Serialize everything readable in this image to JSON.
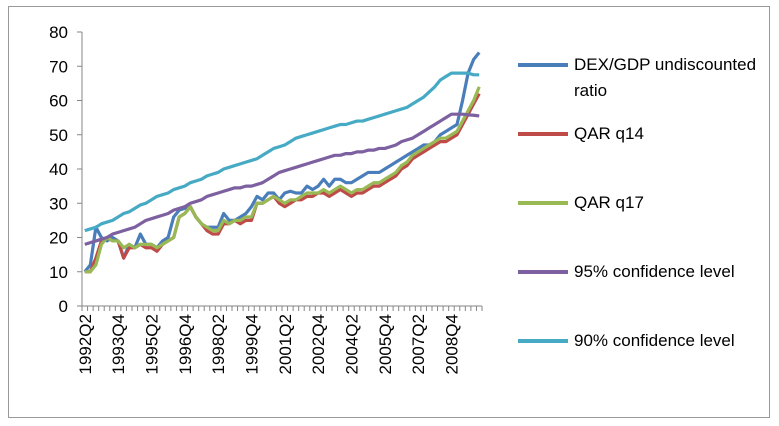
{
  "chart_data": {
    "type": "line",
    "categories": [
      "1992Q2",
      null,
      null,
      null,
      null,
      null,
      "1993Q4",
      null,
      null,
      null,
      null,
      null,
      "1995Q2",
      null,
      null,
      null,
      null,
      null,
      "1996Q4",
      null,
      null,
      null,
      null,
      null,
      "1998Q2",
      null,
      null,
      null,
      null,
      null,
      "1999Q4",
      null,
      null,
      null,
      null,
      null,
      "2001Q2",
      null,
      null,
      null,
      null,
      null,
      "2002Q4",
      null,
      null,
      null,
      null,
      null,
      "2004Q2",
      null,
      null,
      null,
      null,
      null,
      "2005Q4",
      null,
      null,
      null,
      null,
      null,
      "2007Q2",
      null,
      null,
      null,
      null,
      null,
      "2008Q4",
      null,
      null,
      null,
      null,
      null
    ],
    "ylim": [
      0,
      80
    ],
    "yticks": [
      0,
      10,
      20,
      30,
      40,
      50,
      60,
      70,
      80
    ],
    "series": [
      {
        "name": "DEX/GDP undiscounted ratio",
        "color": "#4a7ebb",
        "values": [
          10,
          12,
          23,
          20,
          19,
          20,
          19,
          14,
          18,
          17,
          21,
          18,
          18,
          17,
          19,
          20,
          26,
          28,
          28.5,
          29,
          26,
          24,
          23,
          23,
          23,
          27,
          25,
          25,
          26,
          27,
          29,
          32,
          31,
          33,
          33,
          31,
          33,
          33.5,
          33,
          33,
          35,
          34,
          35,
          37,
          35,
          37,
          37,
          36,
          36,
          37,
          38,
          39,
          39,
          39,
          40,
          41,
          42,
          43,
          44,
          45,
          46,
          47,
          47,
          48,
          50,
          51,
          52,
          53,
          60,
          68,
          72,
          74
        ]
      },
      {
        "name": "QAR q14",
        "color": "#be4b48",
        "values": [
          10,
          10,
          14,
          19,
          20,
          19,
          19,
          14,
          17,
          17,
          18,
          17,
          17,
          16,
          18,
          19,
          20,
          26,
          27,
          29,
          26,
          24,
          22,
          21,
          21,
          24,
          24,
          25,
          24,
          25,
          25,
          30,
          30,
          31,
          32,
          30,
          29,
          30,
          31,
          31,
          32,
          32,
          33,
          33,
          32,
          33,
          34,
          33,
          32,
          33,
          33,
          34,
          35,
          35,
          36,
          37,
          38,
          40,
          41,
          43,
          44,
          45,
          46,
          47,
          48,
          48,
          49,
          50,
          53,
          56,
          59,
          62
        ]
      },
      {
        "name": "QAR q17",
        "color": "#98b954",
        "values": [
          10,
          10,
          12,
          18,
          20,
          19,
          19,
          17,
          18,
          17,
          18,
          18,
          18,
          17,
          18,
          19,
          20,
          26,
          27,
          29,
          26,
          24,
          23,
          22,
          22,
          25,
          24,
          25,
          25,
          26,
          26,
          30,
          30,
          31,
          32,
          31,
          30,
          31,
          31,
          32,
          33,
          33,
          33,
          34,
          33,
          34,
          35,
          34,
          33,
          34,
          34,
          35,
          36,
          36,
          37,
          38,
          39,
          41,
          42,
          44,
          45,
          46,
          47,
          48,
          49,
          49,
          50,
          51,
          54,
          57,
          60,
          64
        ]
      },
      {
        "name": "95% confidence level",
        "color": "#7d60a0",
        "values": [
          18,
          18.5,
          19,
          19.5,
          20,
          21,
          21.5,
          22,
          22.5,
          23,
          24,
          25,
          25.5,
          26,
          26.5,
          27,
          28,
          28.5,
          29,
          30,
          30.5,
          31,
          32,
          32.5,
          33,
          33.5,
          34,
          34.5,
          34.5,
          35,
          35,
          35.5,
          36,
          37,
          38,
          39,
          39.5,
          40,
          40.5,
          41,
          41.5,
          42,
          42.5,
          43,
          43.5,
          44,
          44,
          44.5,
          44.5,
          45,
          45,
          45.5,
          45.5,
          46,
          46,
          46.5,
          47,
          48,
          48.5,
          49,
          50,
          51,
          52,
          53,
          54,
          55,
          56,
          56,
          56,
          55.8,
          55.7,
          55.5
        ]
      },
      {
        "name": "90% confidence level",
        "color": "#46aac5",
        "values": [
          22,
          22.5,
          23,
          24,
          24.5,
          25,
          26,
          27,
          27.5,
          28.5,
          29.5,
          30,
          31,
          32,
          32.5,
          33,
          34,
          34.5,
          35,
          36,
          36.5,
          37,
          38,
          38.5,
          39,
          40,
          40.5,
          41,
          41.5,
          42,
          42.5,
          43,
          44,
          45,
          46,
          46.5,
          47,
          48,
          49,
          49.5,
          50,
          50.5,
          51,
          51.5,
          52,
          52.5,
          53,
          53,
          53.5,
          54,
          54,
          54.5,
          55,
          55.5,
          56,
          56.5,
          57,
          57.5,
          58,
          59,
          60,
          61,
          62.5,
          64,
          66,
          67,
          68,
          68,
          68,
          68,
          67.5,
          67.5
        ]
      }
    ]
  }
}
